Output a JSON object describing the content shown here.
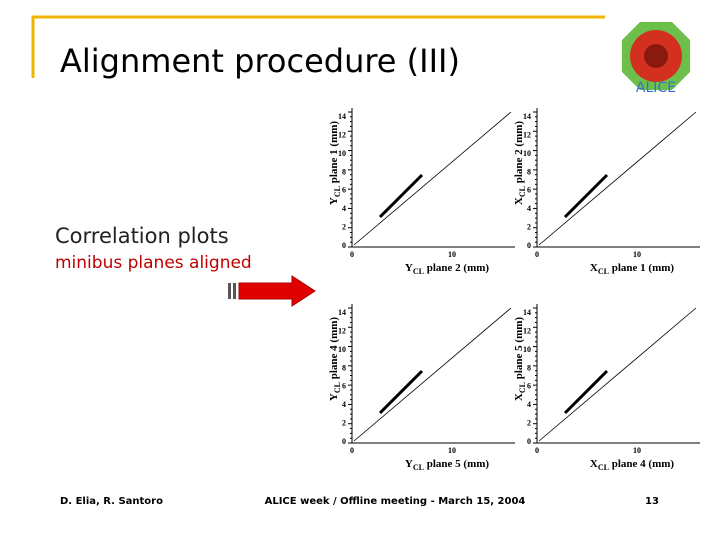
{
  "header": {
    "title": "Alignment procedure (III)"
  },
  "body": {
    "heading": "Correlation plots",
    "subheading": "minibus planes aligned"
  },
  "plots": [
    {
      "y_label": {
        "var": "Y",
        "sub": "CL",
        "text": " plane 1 (mm)"
      },
      "x_label": {
        "var": "Y",
        "sub": "CL",
        "text": " plane 2 (mm)"
      },
      "y_ticks": [
        "0",
        "2",
        "4",
        "6",
        "8",
        "10",
        "12",
        "14"
      ],
      "x_ticks": [
        "0",
        "10"
      ]
    },
    {
      "y_label": {
        "var": "X",
        "sub": "CL",
        "text": " plane 2 (mm)"
      },
      "x_label": {
        "var": "X",
        "sub": "CL",
        "text": " plane 1 (mm)"
      },
      "y_ticks": [
        "0",
        "2",
        "4",
        "6",
        "8",
        "10",
        "12",
        "14"
      ],
      "x_ticks": [
        "0",
        "10"
      ]
    },
    {
      "y_label": {
        "var": "Y",
        "sub": "CL",
        "text": " plane 4 (mm)"
      },
      "x_label": {
        "var": "Y",
        "sub": "CL",
        "text": " plane 5 (mm)"
      },
      "y_ticks": [
        "0",
        "2",
        "4",
        "6",
        "8",
        "10",
        "12",
        "14"
      ],
      "x_ticks": [
        "0",
        "10"
      ]
    },
    {
      "y_label": {
        "var": "X",
        "sub": "CL",
        "text": " plane 5 (mm)"
      },
      "x_label": {
        "var": "X",
        "sub": "CL",
        "text": " plane 4 (mm)"
      },
      "y_ticks": [
        "0",
        "2",
        "4",
        "6",
        "8",
        "10",
        "12",
        "14"
      ],
      "x_ticks": [
        "0",
        "10"
      ]
    }
  ],
  "footer": {
    "authors": "D. Elia, R. Santoro",
    "event": "ALICE week / Offline meeting - March 15, 2004",
    "page": "13"
  }
}
